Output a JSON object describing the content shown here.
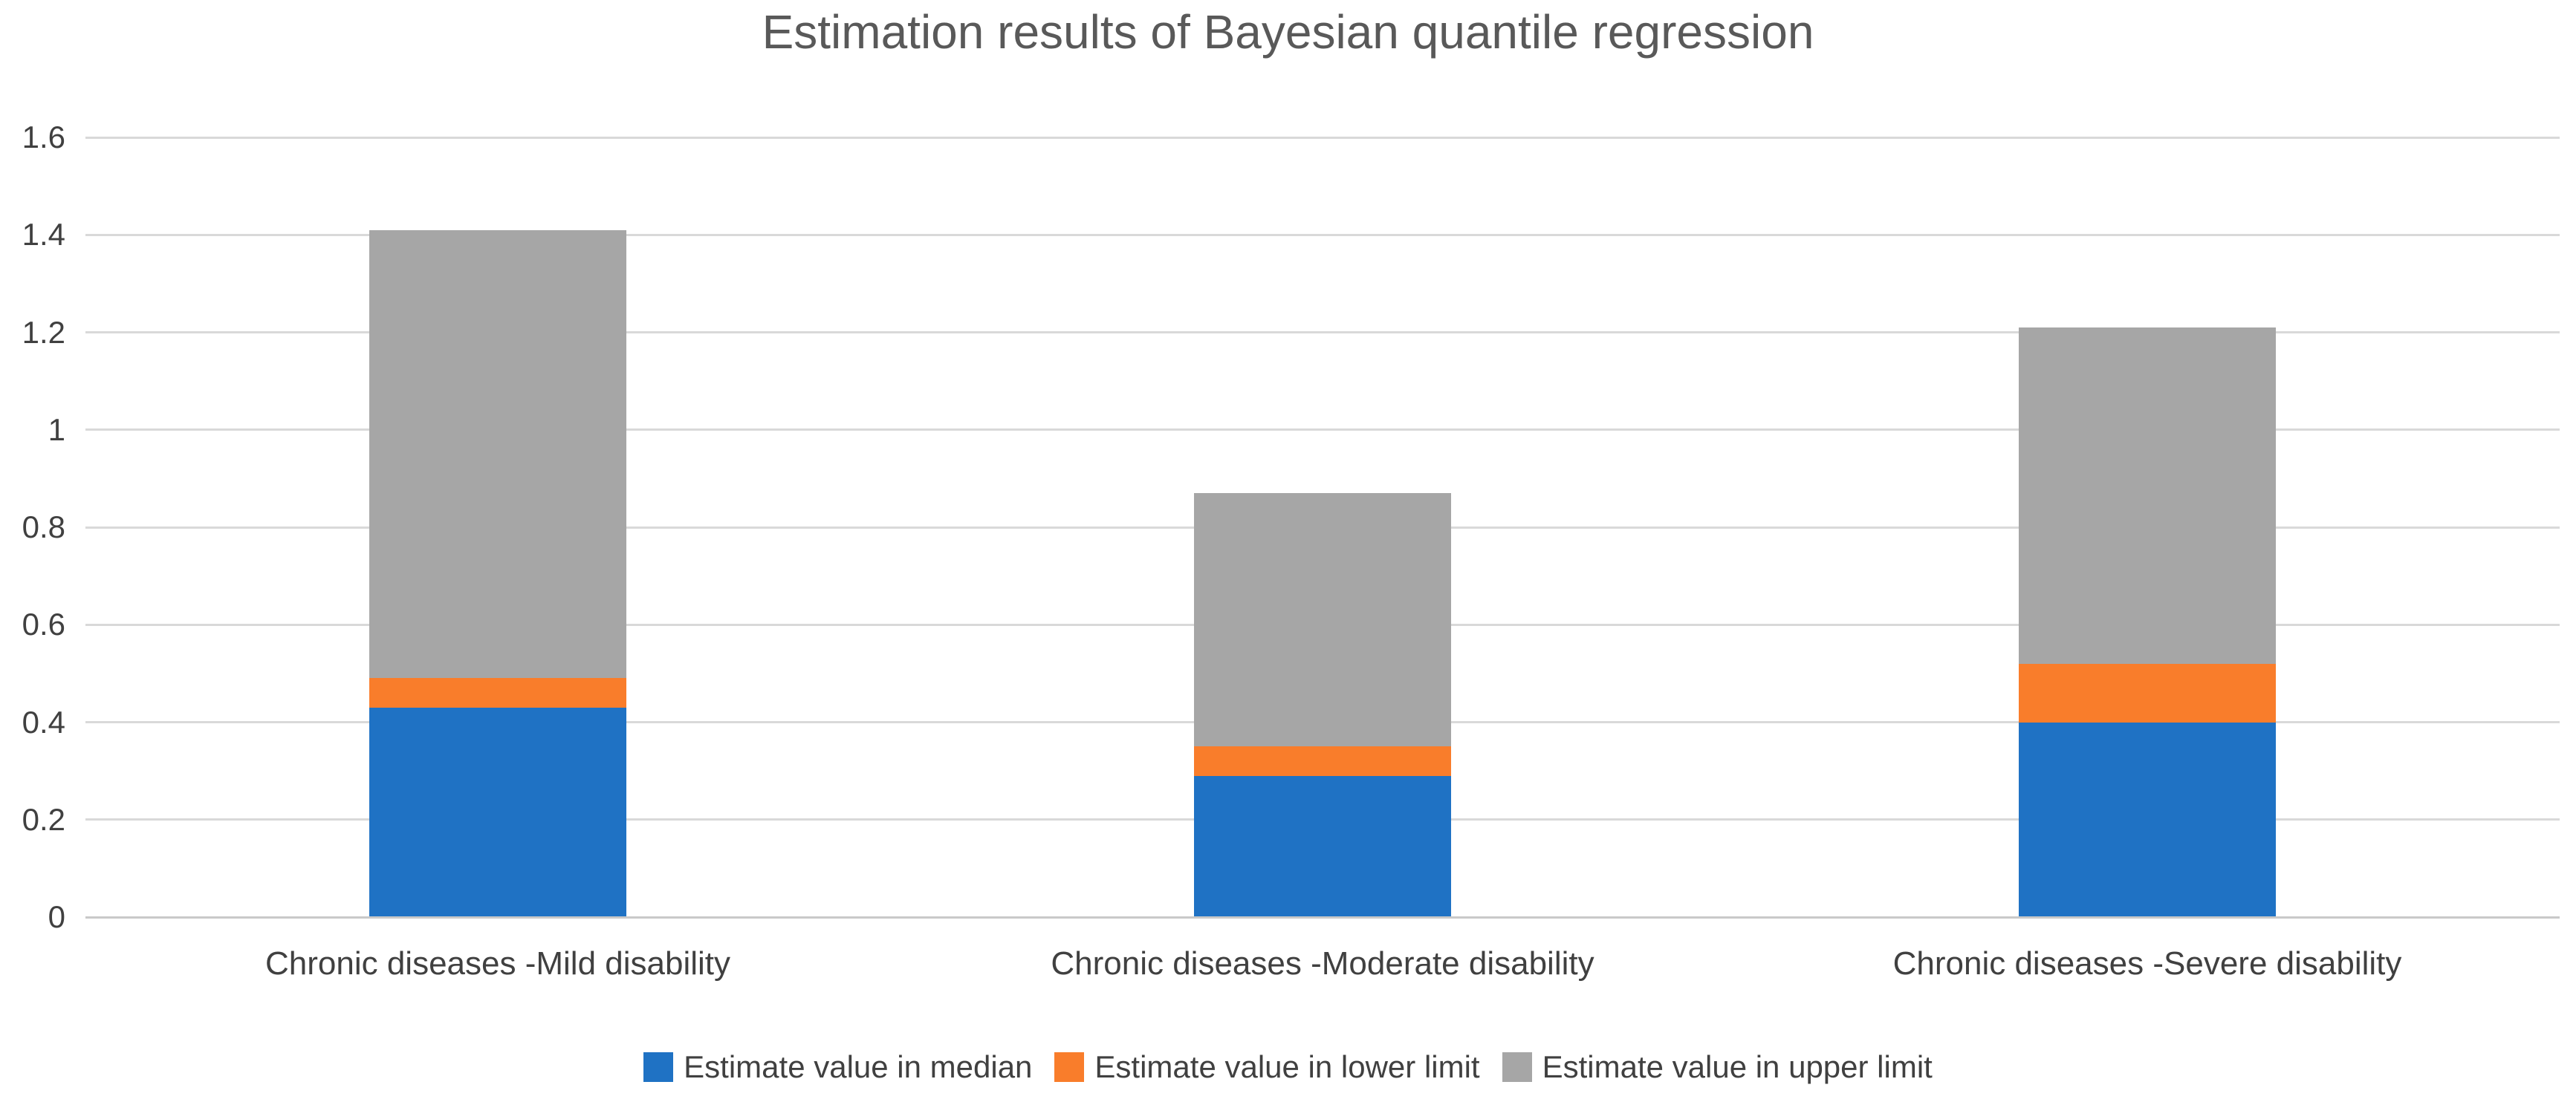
{
  "title": "Estimation results of Bayesian quantile regression",
  "colors": {
    "median_blue": "#1F72C4",
    "lower_orange": "#F97D2B",
    "upper_gray": "#A6A6A6",
    "gridline": "#D9D9D9",
    "axis_line": "#C9C9C9",
    "title_text": "#595959",
    "label_text": "#404040",
    "background": "#FFFFFF"
  },
  "chart_data": {
    "type": "bar",
    "stacked": true,
    "title": "Estimation results of Bayesian quantile regression",
    "categories": [
      "Chronic diseases -Mild disability",
      "Chronic diseases -Moderate disability",
      "Chronic diseases -Severe disability"
    ],
    "series": [
      {
        "name": "Estimate value in median",
        "color": "#1F72C4",
        "values": [
          0.43,
          0.29,
          0.4
        ]
      },
      {
        "name": "Estimate value in lower limit",
        "color": "#F97D2B",
        "values": [
          0.06,
          0.06,
          0.12
        ]
      },
      {
        "name": "Estimate value in upper limit",
        "color": "#A6A6A6",
        "values": [
          0.92,
          0.52,
          0.69
        ]
      }
    ],
    "stack_tops": {
      "after_median": [
        0.43,
        0.29,
        0.4
      ],
      "after_lower_limit": [
        0.49,
        0.35,
        0.52
      ],
      "after_upper_limit": [
        1.41,
        0.87,
        1.21
      ]
    },
    "ylim": [
      0,
      1.6
    ],
    "yticks": [
      0,
      0.2,
      0.4,
      0.6,
      0.8,
      1,
      1.2,
      1.4,
      1.6
    ],
    "ytick_labels": [
      "0",
      "0.2",
      "0.4",
      "0.6",
      "0.8",
      "1",
      "1.2",
      "1.4",
      "1.6"
    ],
    "xlabel": "",
    "ylabel": "",
    "grid": true,
    "legend_position": "bottom"
  }
}
